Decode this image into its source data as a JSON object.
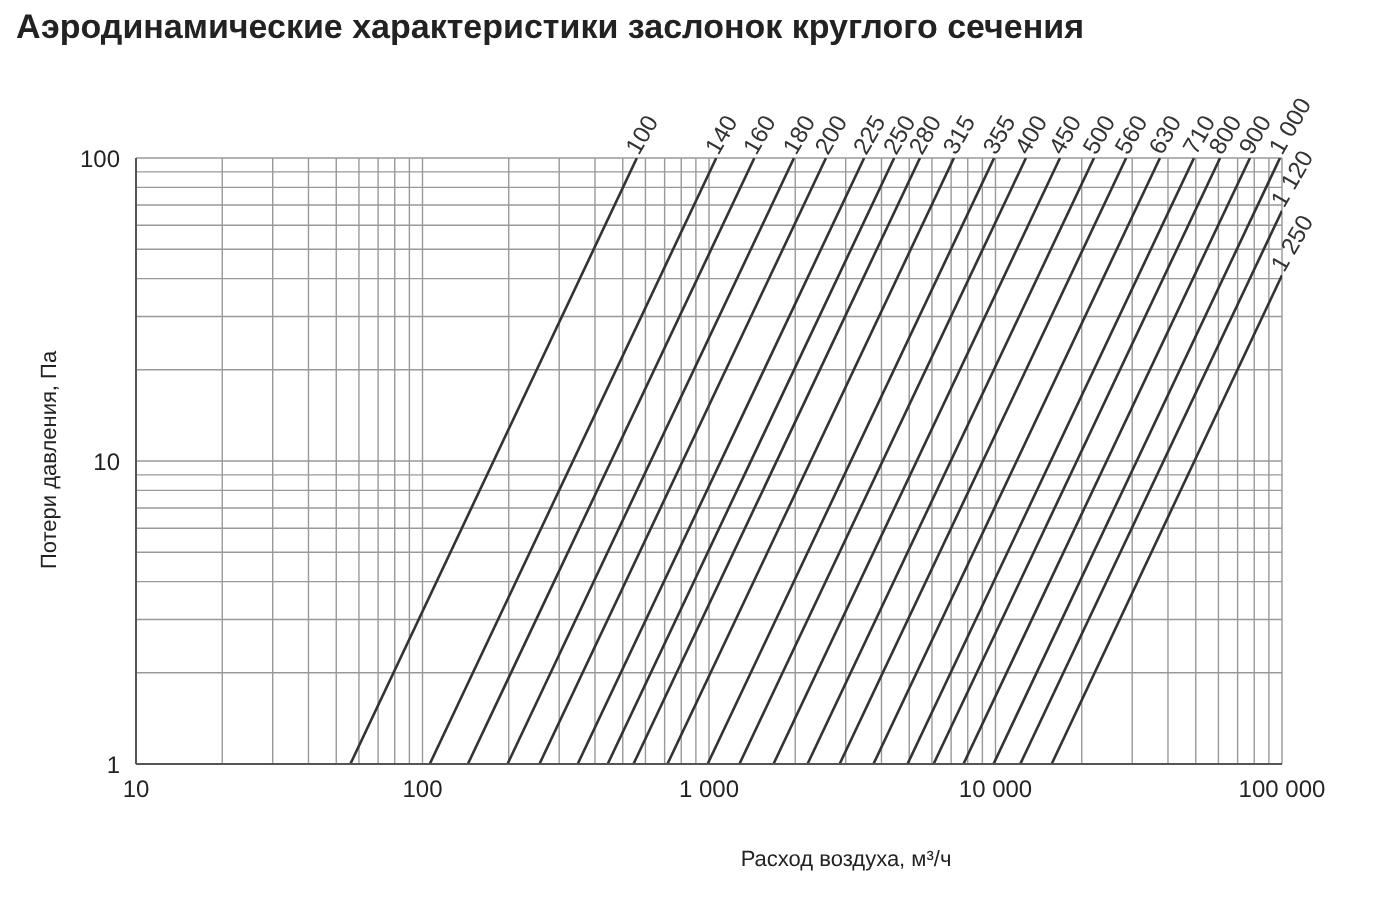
{
  "chart_data": {
    "type": "line",
    "title": "Аэродинамические характеристики заслонок круглого сечения",
    "xlabel": "Расход воздуха, м³/ч",
    "ylabel": "Потери давления, Па",
    "log": "xy",
    "grid": true,
    "legend": false,
    "marker": "none",
    "line_style": "solid",
    "xlim": [
      10,
      100000
    ],
    "ylim": [
      1,
      100
    ],
    "xticks": [
      10,
      {
        "value": 20,
        "label": null
      },
      {
        "value": 30,
        "label": null
      },
      {
        "value": 40,
        "label": null
      },
      {
        "value": 50,
        "label": null
      },
      {
        "value": 60,
        "label": null
      },
      {
        "value": 70,
        "label": null
      },
      {
        "value": 80,
        "label": null
      },
      {
        "value": 90,
        "label": null
      },
      100,
      {
        "value": 200,
        "label": null
      },
      {
        "value": 300,
        "label": null
      },
      {
        "value": 400,
        "label": null
      },
      {
        "value": 500,
        "label": null
      },
      {
        "value": 600,
        "label": null
      },
      {
        "value": 700,
        "label": null
      },
      {
        "value": 800,
        "label": null
      },
      {
        "value": 900,
        "label": null
      },
      {
        "value": 1000,
        "label": "1 000"
      },
      {
        "value": 2000,
        "label": null
      },
      {
        "value": 3000,
        "label": null
      },
      {
        "value": 4000,
        "label": null
      },
      {
        "value": 5000,
        "label": null
      },
      {
        "value": 6000,
        "label": null
      },
      {
        "value": 7000,
        "label": null
      },
      {
        "value": 8000,
        "label": null
      },
      {
        "value": 9000,
        "label": null
      },
      {
        "value": 10000,
        "label": "10 000"
      },
      {
        "value": 20000,
        "label": null
      },
      {
        "value": 30000,
        "label": null
      },
      {
        "value": 40000,
        "label": null
      },
      {
        "value": 50000,
        "label": null
      },
      {
        "value": 60000,
        "label": null
      },
      {
        "value": 70000,
        "label": null
      },
      {
        "value": 80000,
        "label": null
      },
      {
        "value": 90000,
        "label": null
      },
      {
        "value": 100000,
        "label": "100 000"
      }
    ],
    "yticks": [
      1,
      {
        "value": 2,
        "label": null
      },
      {
        "value": 3,
        "label": null
      },
      {
        "value": 4,
        "label": null
      },
      {
        "value": 5,
        "label": null
      },
      {
        "value": 6,
        "label": null
      },
      {
        "value": 7,
        "label": null
      },
      {
        "value": 8,
        "label": null
      },
      {
        "value": 9,
        "label": null
      },
      10,
      {
        "value": 20,
        "label": null
      },
      {
        "value": 30,
        "label": null
      },
      {
        "value": 40,
        "label": null
      },
      {
        "value": 50,
        "label": null
      },
      {
        "value": 60,
        "label": null
      },
      {
        "value": 70,
        "label": null
      },
      {
        "value": 80,
        "label": null
      },
      {
        "value": 90,
        "label": null
      },
      100
    ],
    "series": [
      {
        "name": "100",
        "color": "#333333",
        "x": [
          56,
          560
        ],
        "values": [
          1,
          100
        ]
      },
      {
        "name": "140",
        "color": "#333333",
        "x": [
          106,
          1060
        ],
        "values": [
          1,
          100
        ]
      },
      {
        "name": "160",
        "color": "#333333",
        "x": [
          144,
          1440
        ],
        "values": [
          1,
          100
        ]
      },
      {
        "name": "180",
        "color": "#333333",
        "x": [
          198,
          1980
        ],
        "values": [
          1,
          100
        ]
      },
      {
        "name": "200",
        "color": "#333333",
        "x": [
          256,
          2560
        ],
        "values": [
          1,
          100
        ]
      },
      {
        "name": "225",
        "color": "#333333",
        "x": [
          348,
          3480
        ],
        "values": [
          1,
          100
        ]
      },
      {
        "name": "250",
        "color": "#333333",
        "x": [
          443,
          4430
        ],
        "values": [
          1,
          100
        ]
      },
      {
        "name": "280",
        "color": "#333333",
        "x": [
          545,
          5450
        ],
        "values": [
          1,
          100
        ]
      },
      {
        "name": "315",
        "color": "#333333",
        "x": [
          716,
          7160
        ],
        "values": [
          1,
          100
        ]
      },
      {
        "name": "355",
        "color": "#333333",
        "x": [
          989,
          9890
        ],
        "values": [
          1,
          100
        ]
      },
      {
        "name": "400",
        "color": "#333333",
        "x": [
          1277,
          12770
        ],
        "values": [
          1,
          100
        ]
      },
      {
        "name": "450",
        "color": "#333333",
        "x": [
          1679,
          16790
        ],
        "values": [
          1,
          100
        ]
      },
      {
        "name": "500",
        "color": "#333333",
        "x": [
          2207,
          22070
        ],
        "values": [
          1,
          100
        ]
      },
      {
        "name": "560",
        "color": "#333333",
        "x": [
          2857,
          28570
        ],
        "values": [
          1,
          100
        ]
      },
      {
        "name": "630",
        "color": "#333333",
        "x": [
          3750,
          37500
        ],
        "values": [
          1,
          100
        ]
      },
      {
        "name": "710",
        "color": "#333333",
        "x": [
          4930,
          49300
        ],
        "values": [
          1,
          100
        ]
      },
      {
        "name": "800",
        "color": "#333333",
        "x": [
          6080,
          60800
        ],
        "values": [
          1,
          100
        ]
      },
      {
        "name": "900",
        "color": "#333333",
        "x": [
          7730,
          77300
        ],
        "values": [
          1,
          100
        ]
      },
      {
        "name": "1 000",
        "color": "#333333",
        "x": [
          9840,
          98400
        ],
        "values": [
          1,
          100
        ]
      },
      {
        "name": "1 120",
        "color": "#333333",
        "x": [
          12200,
          100000
        ],
        "values": [
          1,
          67
        ]
      },
      {
        "name": "1 250",
        "color": "#333333",
        "x": [
          15700,
          100000
        ],
        "values": [
          1,
          41
        ]
      }
    ]
  }
}
